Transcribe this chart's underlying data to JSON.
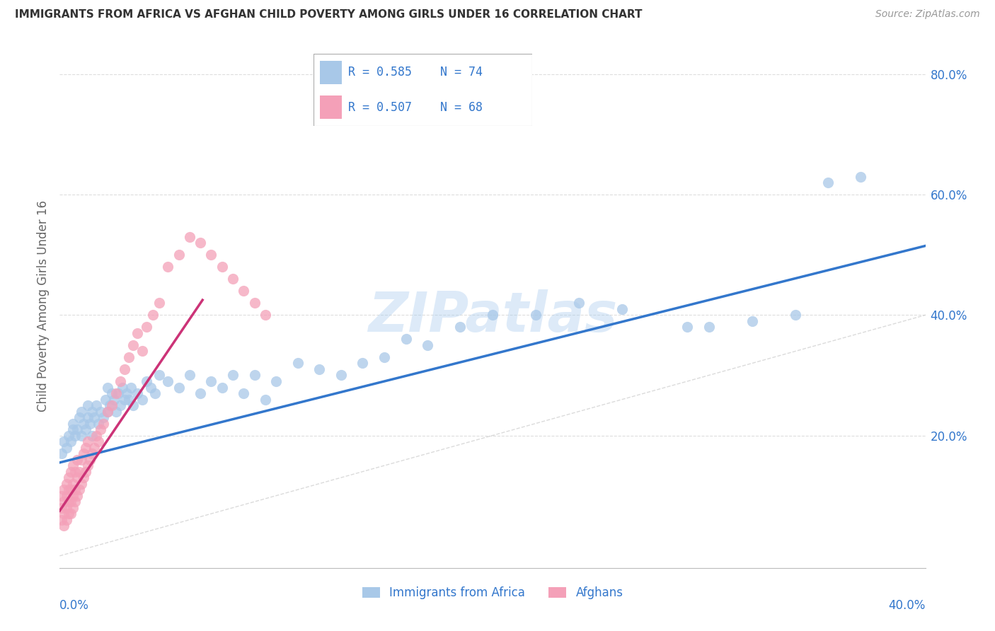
{
  "title": "IMMIGRANTS FROM AFRICA VS AFGHAN CHILD POVERTY AMONG GIRLS UNDER 16 CORRELATION CHART",
  "source": "Source: ZipAtlas.com",
  "ylabel": "Child Poverty Among Girls Under 16",
  "xlim": [
    0.0,
    0.4
  ],
  "ylim": [
    -0.02,
    0.85
  ],
  "color_blue": "#a8c8e8",
  "color_pink": "#f4a0b8",
  "color_line_blue": "#3377cc",
  "color_line_pink": "#cc3377",
  "color_diag": "#cccccc",
  "watermark": "ZIPatlas",
  "series1_label": "Immigrants from Africa",
  "series2_label": "Afghans",
  "blue_x": [
    0.001,
    0.002,
    0.003,
    0.004,
    0.005,
    0.006,
    0.006,
    0.007,
    0.008,
    0.009,
    0.01,
    0.01,
    0.011,
    0.012,
    0.013,
    0.013,
    0.014,
    0.015,
    0.015,
    0.016,
    0.017,
    0.018,
    0.019,
    0.02,
    0.021,
    0.022,
    0.022,
    0.023,
    0.024,
    0.025,
    0.026,
    0.027,
    0.028,
    0.029,
    0.03,
    0.031,
    0.032,
    0.033,
    0.034,
    0.036,
    0.038,
    0.04,
    0.042,
    0.044,
    0.046,
    0.05,
    0.055,
    0.06,
    0.065,
    0.07,
    0.075,
    0.08,
    0.085,
    0.09,
    0.095,
    0.1,
    0.11,
    0.12,
    0.13,
    0.14,
    0.15,
    0.16,
    0.17,
    0.185,
    0.2,
    0.22,
    0.24,
    0.26,
    0.29,
    0.3,
    0.32,
    0.34,
    0.355,
    0.37
  ],
  "blue_y": [
    0.17,
    0.19,
    0.18,
    0.2,
    0.19,
    0.21,
    0.22,
    0.2,
    0.21,
    0.23,
    0.2,
    0.24,
    0.22,
    0.21,
    0.23,
    0.25,
    0.22,
    0.24,
    0.2,
    0.23,
    0.25,
    0.22,
    0.24,
    0.23,
    0.26,
    0.24,
    0.28,
    0.25,
    0.27,
    0.26,
    0.24,
    0.27,
    0.25,
    0.28,
    0.26,
    0.27,
    0.26,
    0.28,
    0.25,
    0.27,
    0.26,
    0.29,
    0.28,
    0.27,
    0.3,
    0.29,
    0.28,
    0.3,
    0.27,
    0.29,
    0.28,
    0.3,
    0.27,
    0.3,
    0.26,
    0.29,
    0.32,
    0.31,
    0.3,
    0.32,
    0.33,
    0.36,
    0.35,
    0.38,
    0.4,
    0.4,
    0.42,
    0.41,
    0.38,
    0.38,
    0.39,
    0.4,
    0.62,
    0.63
  ],
  "pink_x": [
    0.001,
    0.001,
    0.001,
    0.002,
    0.002,
    0.002,
    0.002,
    0.003,
    0.003,
    0.003,
    0.003,
    0.004,
    0.004,
    0.004,
    0.004,
    0.005,
    0.005,
    0.005,
    0.005,
    0.006,
    0.006,
    0.006,
    0.006,
    0.007,
    0.007,
    0.007,
    0.008,
    0.008,
    0.008,
    0.009,
    0.009,
    0.01,
    0.01,
    0.011,
    0.011,
    0.012,
    0.012,
    0.013,
    0.013,
    0.014,
    0.015,
    0.016,
    0.017,
    0.018,
    0.019,
    0.02,
    0.022,
    0.024,
    0.026,
    0.028,
    0.03,
    0.032,
    0.034,
    0.036,
    0.038,
    0.04,
    0.043,
    0.046,
    0.05,
    0.055,
    0.06,
    0.065,
    0.07,
    0.075,
    0.08,
    0.085,
    0.09,
    0.095
  ],
  "pink_y": [
    0.06,
    0.08,
    0.1,
    0.05,
    0.07,
    0.09,
    0.11,
    0.06,
    0.08,
    0.1,
    0.12,
    0.07,
    0.09,
    0.11,
    0.13,
    0.07,
    0.09,
    0.11,
    0.14,
    0.08,
    0.1,
    0.12,
    0.15,
    0.09,
    0.11,
    0.14,
    0.1,
    0.13,
    0.16,
    0.11,
    0.14,
    0.12,
    0.16,
    0.13,
    0.17,
    0.14,
    0.18,
    0.15,
    0.19,
    0.16,
    0.17,
    0.18,
    0.2,
    0.19,
    0.21,
    0.22,
    0.24,
    0.25,
    0.27,
    0.29,
    0.31,
    0.33,
    0.35,
    0.37,
    0.34,
    0.38,
    0.4,
    0.42,
    0.48,
    0.5,
    0.53,
    0.52,
    0.5,
    0.48,
    0.46,
    0.44,
    0.42,
    0.4
  ],
  "blue_trend_x": [
    0.0,
    0.4
  ],
  "blue_trend_y": [
    0.155,
    0.515
  ],
  "pink_trend_x": [
    0.0,
    0.066
  ],
  "pink_trend_y": [
    0.075,
    0.425
  ]
}
